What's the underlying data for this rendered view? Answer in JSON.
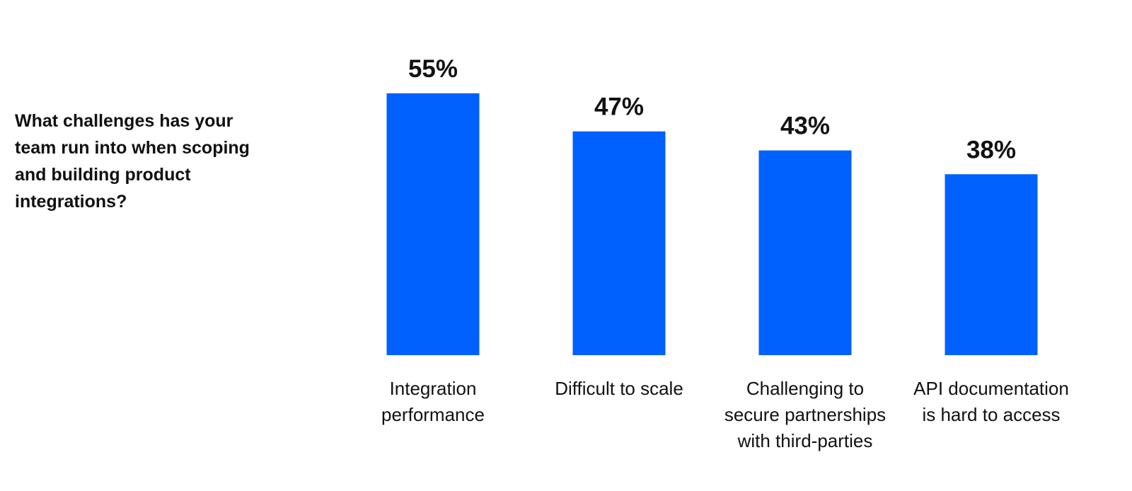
{
  "question": "What challenges has your team run into when scoping and building product integrations?",
  "chart_data": {
    "type": "bar",
    "categories": [
      "Integration performance",
      "Difficult to scale",
      "Challenging to secure partnerships with third-parties",
      "API documentation is hard to access"
    ],
    "category_lines": [
      [
        "Integration",
        "performance"
      ],
      [
        "Difficult to scale"
      ],
      [
        "Challenging to",
        "secure partnerships",
        "with third-parties"
      ],
      [
        "API documentation",
        "is hard to access"
      ]
    ],
    "values": [
      55,
      47,
      43,
      38
    ],
    "value_labels": [
      "55%",
      "47%",
      "43%",
      "38%"
    ],
    "bar_color": "#0061FF",
    "title": "",
    "xlabel": "",
    "ylabel": "",
    "grid": false,
    "legend": false
  }
}
